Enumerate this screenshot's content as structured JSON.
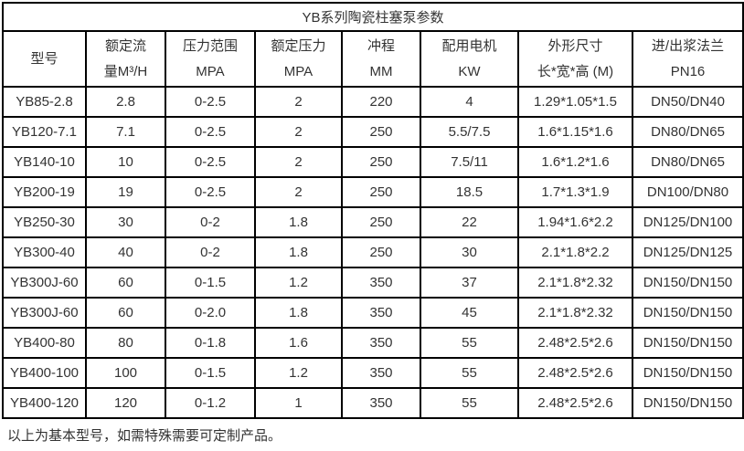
{
  "table": {
    "title": "YB系列陶瓷柱塞泵参数",
    "columns": [
      {
        "line1": "型号",
        "line2": ""
      },
      {
        "line1": "额定流",
        "line2": "量M³/H"
      },
      {
        "line1": "压力范围",
        "line2": "MPA"
      },
      {
        "line1": "额定压力",
        "line2": "MPA"
      },
      {
        "line1": "冲程",
        "line2": "MM"
      },
      {
        "line1": "配用电机",
        "line2": "KW"
      },
      {
        "line1": "外形尺寸",
        "line2": "长*宽*高 (M)"
      },
      {
        "line1": "进/出浆法兰",
        "line2": "PN16"
      }
    ],
    "rows": [
      [
        "YB85-2.8",
        "2.8",
        "0-2.5",
        "2",
        "220",
        "4",
        "1.29*1.05*1.5",
        "DN50/DN40"
      ],
      [
        "YB120-7.1",
        "7.1",
        "0-2.5",
        "2",
        "250",
        "5.5/7.5",
        "1.6*1.15*1.6",
        "DN80/DN65"
      ],
      [
        "YB140-10",
        "10",
        "0-2.5",
        "2",
        "250",
        "7.5/11",
        "1.6*1.2*1.6",
        "DN80/DN65"
      ],
      [
        "YB200-19",
        "19",
        "0-2.5",
        "2",
        "250",
        "18.5",
        "1.7*1.3*1.9",
        "DN100/DN80"
      ],
      [
        "YB250-30",
        "30",
        "0-2",
        "1.8",
        "250",
        "22",
        "1.94*1.6*2.2",
        "DN125/DN100"
      ],
      [
        "YB300-40",
        "40",
        "0-2",
        "1.8",
        "250",
        "30",
        "2.1*1.8*2.2",
        "DN125/DN125"
      ],
      [
        "YB300J-60",
        "60",
        "0-1.5",
        "1.2",
        "350",
        "37",
        "2.1*1.8*2.32",
        "DN150/DN150"
      ],
      [
        "YB300J-60",
        "60",
        "0-2.0",
        "1.8",
        "350",
        "45",
        "2.1*1.8*2.32",
        "DN150/DN150"
      ],
      [
        "YB400-80",
        "80",
        "0-1.8",
        "1.6",
        "350",
        "55",
        "2.48*2.5*2.6",
        "DN150/DN150"
      ],
      [
        "YB400-100",
        "100",
        "0-1.5",
        "1.2",
        "350",
        "55",
        "2.48*2.5*2.6",
        "DN150/DN150"
      ],
      [
        "YB400-120",
        "120",
        "0-1.2",
        "1",
        "350",
        "55",
        "2.48*2.5*2.6",
        "DN150/DN150"
      ]
    ],
    "footnote": "以上为基本型号，如需特殊需要可定制产品。"
  }
}
